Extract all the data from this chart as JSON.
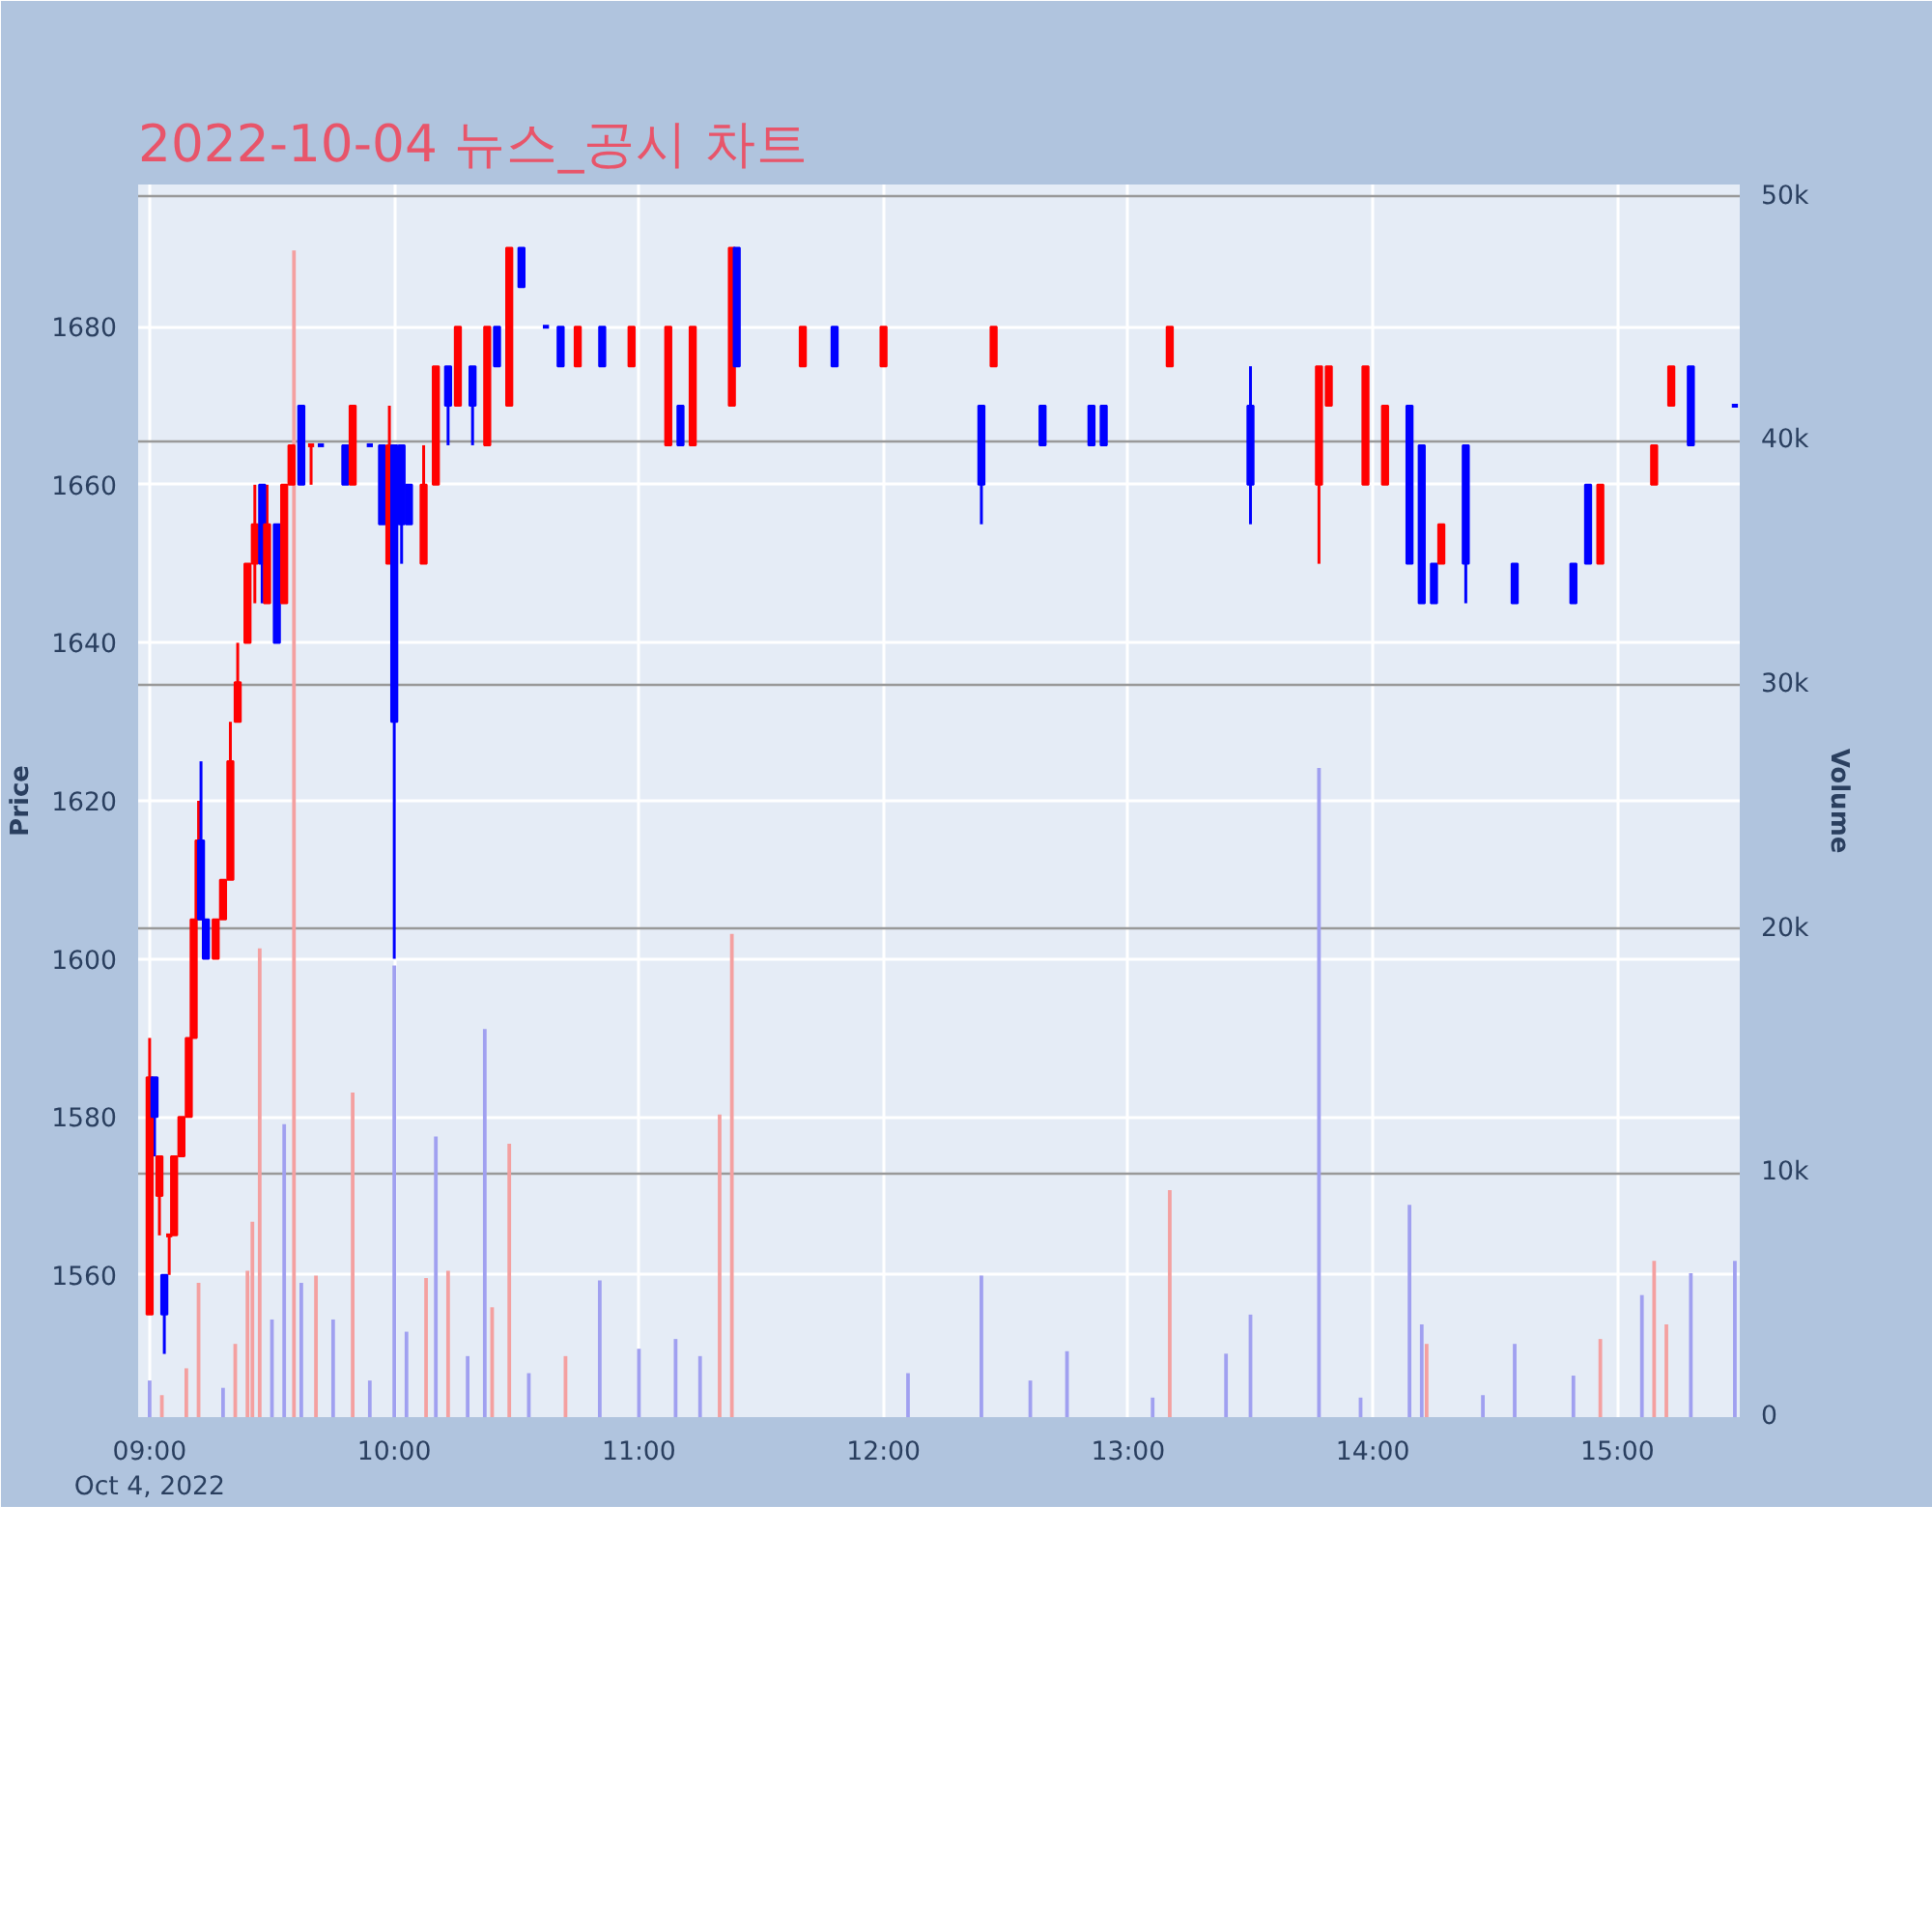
{
  "chart_data": {
    "type": "candlestick",
    "title": "2022-10-04 뉴스_공시 차트",
    "ylabel": "Price",
    "y2label": "Volume",
    "xlim": [
      8.953,
      15.5
    ],
    "xticks": [
      {
        "value": 9,
        "label": "09:00\nOct 4, 2022"
      },
      {
        "value": 10,
        "label": "10:00"
      },
      {
        "value": 11,
        "label": "11:00"
      },
      {
        "value": 12,
        "label": "12:00"
      },
      {
        "value": 13,
        "label": "13:00"
      },
      {
        "value": 14,
        "label": "14:00"
      },
      {
        "value": 15,
        "label": "15:00"
      }
    ],
    "ylim": [
      1542,
      1698
    ],
    "yticks": [
      1560,
      1580,
      1600,
      1620,
      1640,
      1660,
      1680
    ],
    "y2lim": [
      0,
      50500
    ],
    "y2ticks": [
      0,
      {
        "value": 10000,
        "label": "10k"
      },
      {
        "value": 20000,
        "label": "20k"
      },
      {
        "value": 30000,
        "label": "30k"
      },
      {
        "value": 40000,
        "label": "40k"
      },
      {
        "value": 50000,
        "label": "50k"
      }
    ],
    "grid": true,
    "x": [
      9.0,
      9.02,
      9.04,
      9.06,
      9.08,
      9.1,
      9.13,
      9.16,
      9.18,
      9.2,
      9.21,
      9.23,
      9.27,
      9.3,
      9.33,
      9.36,
      9.4,
      9.43,
      9.46,
      9.48,
      9.52,
      9.55,
      9.58,
      9.62,
      9.66,
      9.7,
      9.8,
      9.83,
      9.9,
      9.95,
      9.98,
      10.0,
      10.03,
      10.06,
      10.12,
      10.17,
      10.22,
      10.26,
      10.32,
      10.38,
      10.42,
      10.47,
      10.52,
      10.62,
      10.68,
      10.75,
      10.85,
      10.97,
      11.12,
      11.17,
      11.22,
      11.38,
      11.4,
      11.67,
      11.8,
      12.0,
      12.4,
      12.45,
      12.65,
      12.85,
      12.9,
      13.17,
      13.5,
      13.78,
      13.82,
      13.97,
      14.05,
      14.15,
      14.2,
      14.25,
      14.28,
      14.38,
      14.58,
      14.82,
      14.88,
      14.93,
      15.15,
      15.22,
      15.3,
      15.48
    ],
    "ohlc": [
      [
        1555,
        1590,
        1555,
        1585
      ],
      [
        1585,
        1585,
        1575,
        1580
      ],
      [
        1570,
        1575,
        1565,
        1575
      ],
      [
        1560,
        1560,
        1550,
        1555
      ],
      [
        1565,
        1565,
        1560,
        1565
      ],
      [
        1565,
        1575,
        1565,
        1575
      ],
      [
        1575,
        1580,
        1575,
        1580
      ],
      [
        1580,
        1590,
        1580,
        1590
      ],
      [
        1590,
        1605,
        1590,
        1605
      ],
      [
        1605,
        1620,
        1605,
        1615
      ],
      [
        1615,
        1625,
        1605,
        1605
      ],
      [
        1605,
        1605,
        1600,
        1600
      ],
      [
        1600,
        1605,
        1600,
        1605
      ],
      [
        1605,
        1610,
        1605,
        1610
      ],
      [
        1610,
        1630,
        1610,
        1625
      ],
      [
        1630,
        1640,
        1630,
        1635
      ],
      [
        1640,
        1650,
        1640,
        1650
      ],
      [
        1650,
        1660,
        1645,
        1655
      ],
      [
        1660,
        1660,
        1645,
        1650
      ],
      [
        1645,
        1660,
        1645,
        1655
      ],
      [
        1655,
        1655,
        1640,
        1640
      ],
      [
        1645,
        1660,
        1645,
        1660
      ],
      [
        1660,
        1665,
        1660,
        1665
      ],
      [
        1670,
        1670,
        1660,
        1660
      ],
      [
        1665,
        1665,
        1660,
        1665
      ],
      [
        1665,
        1665,
        1665,
        1665
      ],
      [
        1665,
        1665,
        1660,
        1660
      ],
      [
        1660,
        1670,
        1660,
        1670
      ],
      [
        1665,
        1665,
        1665,
        1665
      ],
      [
        1665,
        1665,
        1655,
        1655
      ],
      [
        1650,
        1670,
        1650,
        1665
      ],
      [
        1665,
        1665,
        1600,
        1630
      ],
      [
        1665,
        1665,
        1650,
        1655
      ],
      [
        1660,
        1660,
        1655,
        1655
      ],
      [
        1650,
        1665,
        1650,
        1660
      ],
      [
        1660,
        1675,
        1660,
        1675
      ],
      [
        1675,
        1675,
        1665,
        1670
      ],
      [
        1670,
        1680,
        1670,
        1680
      ],
      [
        1675,
        1675,
        1665,
        1670
      ],
      [
        1665,
        1680,
        1665,
        1680
      ],
      [
        1680,
        1680,
        1675,
        1675
      ],
      [
        1670,
        1690,
        1670,
        1690
      ],
      [
        1690,
        1690,
        1685,
        1685
      ],
      [
        1680,
        1680,
        1680,
        1680
      ],
      [
        1680,
        1680,
        1675,
        1675
      ],
      [
        1675,
        1680,
        1675,
        1680
      ],
      [
        1680,
        1680,
        1675,
        1675
      ],
      [
        1675,
        1680,
        1675,
        1680
      ],
      [
        1665,
        1680,
        1665,
        1680
      ],
      [
        1670,
        1670,
        1665,
        1665
      ],
      [
        1665,
        1680,
        1665,
        1680
      ],
      [
        1670,
        1690,
        1670,
        1690
      ],
      [
        1690,
        1690,
        1675,
        1675
      ],
      [
        1675,
        1680,
        1675,
        1680
      ],
      [
        1680,
        1680,
        1675,
        1675
      ],
      [
        1675,
        1680,
        1675,
        1680
      ],
      [
        1670,
        1670,
        1655,
        1660
      ],
      [
        1675,
        1680,
        1675,
        1680
      ],
      [
        1670,
        1670,
        1665,
        1665
      ],
      [
        1670,
        1670,
        1665,
        1665
      ],
      [
        1670,
        1670,
        1665,
        1665
      ],
      [
        1675,
        1680,
        1675,
        1680
      ],
      [
        1670,
        1675,
        1655,
        1660
      ],
      [
        1660,
        1675,
        1650,
        1675
      ],
      [
        1670,
        1675,
        1670,
        1675
      ],
      [
        1660,
        1675,
        1660,
        1675
      ],
      [
        1660,
        1670,
        1660,
        1670
      ],
      [
        1670,
        1670,
        1650,
        1650
      ],
      [
        1665,
        1665,
        1645,
        1645
      ],
      [
        1650,
        1650,
        1645,
        1645
      ],
      [
        1650,
        1655,
        1650,
        1655
      ],
      [
        1665,
        1665,
        1645,
        1650
      ],
      [
        1650,
        1650,
        1645,
        1645
      ],
      [
        1650,
        1650,
        1645,
        1645
      ],
      [
        1660,
        1660,
        1650,
        1650
      ],
      [
        1650,
        1660,
        1650,
        1660
      ],
      [
        1660,
        1665,
        1660,
        1665
      ],
      [
        1670,
        1675,
        1670,
        1675
      ],
      [
        1675,
        1675,
        1665,
        1665
      ],
      [
        1670,
        1670,
        1670,
        1670
      ]
    ],
    "colors": [
      "#ff0000",
      "#0000ff",
      "#ff0000",
      "#0000ff",
      "#ff0000",
      "#ff0000",
      "#ff0000",
      "#ff0000",
      "#ff0000",
      "#ff0000",
      "#0000ff",
      "#0000ff",
      "#ff0000",
      "#ff0000",
      "#ff0000",
      "#ff0000",
      "#ff0000",
      "#ff0000",
      "#0000ff",
      "#ff0000",
      "#0000ff",
      "#ff0000",
      "#ff0000",
      "#0000ff",
      "#ff0000",
      "#0000ff",
      "#0000ff",
      "#ff0000",
      "#0000ff",
      "#0000ff",
      "#ff0000",
      "#0000ff",
      "#0000ff",
      "#0000ff",
      "#ff0000",
      "#ff0000",
      "#0000ff",
      "#ff0000",
      "#0000ff",
      "#ff0000",
      "#0000ff",
      "#ff0000",
      "#0000ff",
      "#0000ff",
      "#0000ff",
      "#ff0000",
      "#0000ff",
      "#ff0000",
      "#ff0000",
      "#0000ff",
      "#ff0000",
      "#ff0000",
      "#0000ff",
      "#ff0000",
      "#0000ff",
      "#ff0000",
      "#0000ff",
      "#ff0000",
      "#0000ff",
      "#0000ff",
      "#0000ff",
      "#ff0000",
      "#0000ff",
      "#ff0000",
      "#ff0000",
      "#ff0000",
      "#ff0000",
      "#0000ff",
      "#0000ff",
      "#0000ff",
      "#ff0000",
      "#0000ff",
      "#0000ff",
      "#0000ff",
      "#0000ff",
      "#ff0000",
      "#ff0000",
      "#ff0000",
      "#0000ff",
      "#0000ff"
    ],
    "series": [
      {
        "type": "bar",
        "axis": "y2",
        "x": [
          9.0,
          9.05,
          9.15,
          9.2,
          9.3,
          9.35,
          9.4,
          9.42,
          9.45,
          9.5,
          9.55,
          9.59,
          9.62,
          9.68,
          9.75,
          9.83,
          9.9,
          10.0,
          10.05,
          10.13,
          10.17,
          10.22,
          10.3,
          10.37,
          10.4,
          10.47,
          10.55,
          10.7,
          10.84,
          11.0,
          11.15,
          11.25,
          11.33,
          11.38,
          12.1,
          12.4,
          12.6,
          12.75,
          13.1,
          13.17,
          13.4,
          13.5,
          13.78,
          13.95,
          14.15,
          14.2,
          14.22,
          14.45,
          14.58,
          14.82,
          14.93,
          15.1,
          15.15,
          15.2,
          15.3,
          15.48
        ],
        "values": [
          1500,
          900,
          2000,
          5500,
          1200,
          3000,
          6000,
          8000,
          19200,
          4000,
          12000,
          47800,
          5500,
          5800,
          4000,
          13300,
          1500,
          18500,
          3500,
          5700,
          11500,
          6000,
          2500,
          15900,
          4500,
          11200,
          1800,
          2500,
          5600,
          2800,
          3200,
          2500,
          12400,
          19800,
          1800,
          5800,
          1500,
          2700,
          800,
          9300,
          2600,
          4200,
          26600,
          800,
          8700,
          3800,
          3000,
          900,
          3000,
          1700,
          3200,
          5000,
          6400,
          3800,
          5900,
          6400
        ],
        "colors": [
          "#a0a0f0",
          "#f4a0a0",
          "#f4a0a0",
          "#f4a0a0",
          "#a0a0f0",
          "#f4a0a0",
          "#f4a0a0",
          "#f4a0a0",
          "#f4a0a0",
          "#a0a0f0",
          "#a0a0f0",
          "#f4a0a0",
          "#a0a0f0",
          "#f4a0a0",
          "#a0a0f0",
          "#f4a0a0",
          "#a0a0f0",
          "#a0a0f0",
          "#a0a0f0",
          "#f4a0a0",
          "#a0a0f0",
          "#f4a0a0",
          "#a0a0f0",
          "#a0a0f0",
          "#f4a0a0",
          "#f4a0a0",
          "#a0a0f0",
          "#f4a0a0",
          "#a0a0f0",
          "#a0a0f0",
          "#a0a0f0",
          "#a0a0f0",
          "#f4a0a0",
          "#f4a0a0",
          "#a0a0f0",
          "#a0a0f0",
          "#a0a0f0",
          "#a0a0f0",
          "#a0a0f0",
          "#f4a0a0",
          "#a0a0f0",
          "#a0a0f0",
          "#a0a0f0",
          "#a0a0f0",
          "#a0a0f0",
          "#a0a0f0",
          "#f4a0a0",
          "#a0a0f0",
          "#a0a0f0",
          "#a0a0f0",
          "#f4a0a0",
          "#a0a0f0",
          "#f4a0a0",
          "#f4a0a0",
          "#a0a0f0",
          "#a0a0f0"
        ]
      }
    ]
  }
}
